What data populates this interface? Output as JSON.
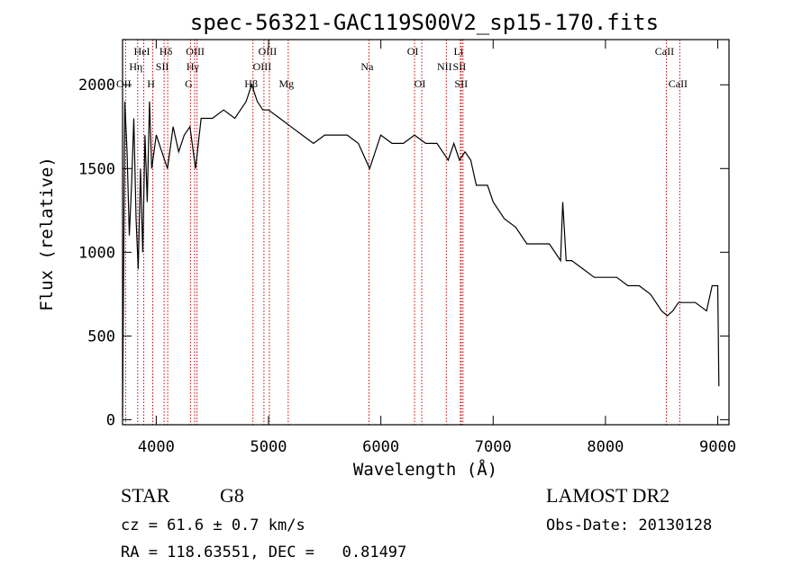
{
  "chart_data": {
    "type": "line",
    "title": "spec-56321-GAC119S00V2_sp15-170.fits",
    "xlabel": "Wavelength (Å)",
    "ylabel": "Flux (relative)",
    "xlim": [
      3700,
      9100
    ],
    "ylim": [
      -30,
      2270
    ],
    "x_ticks": [
      4000,
      5000,
      6000,
      7000,
      8000,
      9000
    ],
    "x_ticklabels": [
      "4000",
      "5000",
      "6000",
      "7000",
      "8000",
      "9000"
    ],
    "y_ticks": [
      0,
      500,
      1000,
      1500,
      2000
    ],
    "y_ticklabels": [
      "0",
      "500",
      "1000",
      "1500",
      "2000"
    ],
    "grid": false,
    "line_color": "#000000",
    "marker_color": "#cc0000",
    "series": [
      {
        "x": [
          3700,
          3720,
          3740,
          3760,
          3780,
          3800,
          3820,
          3840,
          3860,
          3880,
          3900,
          3920,
          3940,
          3960,
          3980,
          4000,
          4050,
          4100,
          4150,
          4200,
          4250,
          4300,
          4350,
          4400,
          4500,
          4600,
          4700,
          4800,
          4850,
          4900,
          4950,
          5000,
          5100,
          5200,
          5300,
          5400,
          5500,
          5600,
          5700,
          5800,
          5900,
          6000,
          6100,
          6200,
          6300,
          6400,
          6500,
          6550,
          6600,
          6650,
          6700,
          6750,
          6800,
          6850,
          6900,
          6950,
          7000,
          7100,
          7200,
          7300,
          7400,
          7500,
          7600,
          7620,
          7650,
          7700,
          7800,
          7900,
          8000,
          8100,
          8200,
          8300,
          8400,
          8500,
          8550,
          8600,
          8650,
          8700,
          8800,
          8900,
          8950,
          9000,
          9010
        ],
        "y": [
          20,
          1900,
          1600,
          1100,
          1400,
          1800,
          1200,
          900,
          1500,
          1000,
          1700,
          1300,
          1900,
          1500,
          1600,
          1700,
          1600,
          1500,
          1750,
          1600,
          1700,
          1750,
          1500,
          1800,
          1800,
          1850,
          1800,
          1900,
          2000,
          1900,
          1850,
          1850,
          1800,
          1750,
          1700,
          1650,
          1700,
          1700,
          1700,
          1650,
          1500,
          1700,
          1650,
          1650,
          1700,
          1650,
          1650,
          1600,
          1550,
          1650,
          1550,
          1600,
          1550,
          1400,
          1400,
          1400,
          1300,
          1200,
          1150,
          1050,
          1050,
          1050,
          950,
          1300,
          950,
          950,
          900,
          850,
          850,
          850,
          800,
          800,
          750,
          650,
          620,
          650,
          700,
          700,
          700,
          650,
          800,
          800,
          200
        ]
      }
    ],
    "line_markers": [
      {
        "label": "HeI",
        "x": 3889,
        "row": 0
      },
      {
        "label": "Hη",
        "x": 3835,
        "row": 1
      },
      {
        "label": "OII",
        "x": 3727,
        "row": 2
      },
      {
        "label": "Hδ",
        "x": 4102,
        "row": 0
      },
      {
        "label": "SII",
        "x": 4070,
        "row": 1
      },
      {
        "label": "H",
        "x": 3969,
        "row": 2
      },
      {
        "label": "OIII",
        "x": 4363,
        "row": 0
      },
      {
        "label": "Hγ",
        "x": 4341,
        "row": 1
      },
      {
        "label": "G",
        "x": 4305,
        "row": 2
      },
      {
        "label": "OIII",
        "x": 5007,
        "row": 0
      },
      {
        "label": "OIII",
        "x": 4959,
        "row": 1
      },
      {
        "label": "Hβ",
        "x": 4861,
        "row": 2
      },
      {
        "label": "Mg",
        "x": 5175,
        "row": 2
      },
      {
        "label": "Na",
        "x": 5894,
        "row": 1
      },
      {
        "label": "OI",
        "x": 6300,
        "row": 0
      },
      {
        "label": "OI",
        "x": 6364,
        "row": 2
      },
      {
        "label": "Li",
        "x": 6708,
        "row": 0
      },
      {
        "label": "NII",
        "x": 6583,
        "row": 1
      },
      {
        "label": "SII",
        "x": 6716,
        "row": 1
      },
      {
        "label": "SII",
        "x": 6731,
        "row": 2
      },
      {
        "label": "CaII",
        "x": 8542,
        "row": 0
      },
      {
        "label": "CaII",
        "x": 8662,
        "row": 2
      }
    ]
  },
  "info": {
    "class_label": "STAR",
    "subclass": "G8",
    "survey": "LAMOST DR2",
    "cz": "cz = 61.6 ± 0.7 km/s",
    "obs_date": "Obs-Date: 20130128",
    "coords": "RA = 118.63551, DEC =   0.81497"
  }
}
